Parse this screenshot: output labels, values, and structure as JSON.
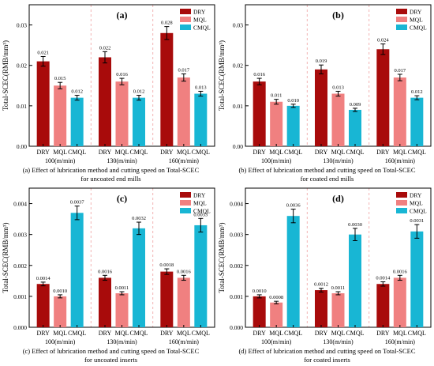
{
  "colors": {
    "DRY": "#a80b0b",
    "MQL": "#f08080",
    "CMQL": "#18b6d4",
    "grid": "#f2b3b3",
    "error": "#000000"
  },
  "chart_data": [
    {
      "type": "bar",
      "panel_label": "(a)",
      "ylabel": "Total-SCEC(RMB/mm³)",
      "ylim": [
        0,
        0.035
      ],
      "yticks": [
        "0.00",
        "0.01",
        "0.02",
        "0.03"
      ],
      "ytick_values": [
        0,
        0.01,
        0.02,
        0.03
      ],
      "categories": [
        "DRY",
        "MQL",
        "CMQL"
      ],
      "groups": [
        "100(m/min)",
        "130(m/min)",
        "160(m/min)"
      ],
      "series": [
        {
          "name": "DRY",
          "values": [
            0.021,
            0.022,
            0.028
          ],
          "labels": [
            "0.021",
            "0.022",
            "0.028"
          ],
          "errors": [
            0.0012,
            0.0014,
            0.0016
          ]
        },
        {
          "name": "MQL",
          "values": [
            0.015,
            0.016,
            0.017
          ],
          "labels": [
            "0.015",
            "0.016",
            "0.017"
          ],
          "errors": [
            0.0008,
            0.0008,
            0.0009
          ]
        },
        {
          "name": "CMQL",
          "values": [
            0.012,
            0.012,
            0.013
          ],
          "labels": [
            "0.012",
            "0.012",
            "0.013"
          ],
          "errors": [
            0.0006,
            0.0006,
            0.0006
          ]
        }
      ],
      "legend": [
        "DRY",
        "MQL",
        "CMQL"
      ],
      "legend_position": "top-right",
      "caption": [
        "(a) Effect of lubrication method and cutting speed on Total-SCEC",
        "for uncoated end mills"
      ]
    },
    {
      "type": "bar",
      "panel_label": "(b)",
      "ylabel": "Total-SCEC(RMB/mm³)",
      "ylim": [
        0,
        0.035
      ],
      "yticks": [
        "0.00",
        "0.01",
        "0.02",
        "0.03"
      ],
      "ytick_values": [
        0,
        0.01,
        0.02,
        0.03
      ],
      "categories": [
        "DRY",
        "MQL",
        "CMQL"
      ],
      "groups": [
        "100(m/min)",
        "130(m/min)",
        "160(m/min)"
      ],
      "series": [
        {
          "name": "DRY",
          "values": [
            0.016,
            0.019,
            0.024
          ],
          "labels": [
            "0.016",
            "0.019",
            "0.024"
          ],
          "errors": [
            0.0008,
            0.0011,
            0.0013
          ]
        },
        {
          "name": "MQL",
          "values": [
            0.011,
            0.013,
            0.017
          ],
          "labels": [
            "0.011",
            "0.013",
            "0.017"
          ],
          "errors": [
            0.0006,
            0.0006,
            0.0008
          ]
        },
        {
          "name": "CMQL",
          "values": [
            0.01,
            0.009,
            0.012
          ],
          "labels": [
            "0.010",
            "0.009",
            "0.012"
          ],
          "errors": [
            0.0004,
            0.0004,
            0.0005
          ]
        }
      ],
      "legend": [
        "DRY",
        "MQL",
        "CMQL"
      ],
      "legend_position": "top-right",
      "caption": [
        "(b) Effect of lubrication method and cutting speed on Total-SCEC",
        "for coated end mills"
      ]
    },
    {
      "type": "bar",
      "panel_label": "(c)",
      "ylabel": "Total-SCEC(RMB/mm³)",
      "ylim": [
        0,
        0.0045
      ],
      "yticks": [
        "0.000",
        "0.001",
        "0.002",
        "0.003",
        "0.004"
      ],
      "ytick_values": [
        0,
        0.001,
        0.002,
        0.003,
        0.004
      ],
      "categories": [
        "DRY",
        "MQL",
        "CMQL"
      ],
      "groups": [
        "100(m/min)",
        "130(m/min)",
        "160(m/min)"
      ],
      "series": [
        {
          "name": "DRY",
          "values": [
            0.0014,
            0.0016,
            0.0018
          ],
          "labels": [
            "0.0014",
            "0.0016",
            "0.0018"
          ],
          "errors": [
            6e-05,
            8e-05,
            9e-05
          ]
        },
        {
          "name": "MQL",
          "values": [
            0.001,
            0.0011,
            0.0016
          ],
          "labels": [
            "0.0010",
            "0.0011",
            "0.0016"
          ],
          "errors": [
            5e-05,
            5e-05,
            8e-05
          ]
        },
        {
          "name": "CMQL",
          "values": [
            0.0037,
            0.0032,
            0.0033
          ],
          "labels": [
            "0.0037",
            "0.0032",
            "0.0033"
          ],
          "errors": [
            0.00022,
            0.0002,
            0.00022
          ]
        }
      ],
      "legend": [
        "DRY",
        "MQL",
        "CMQL"
      ],
      "legend_position": "top-right",
      "caption": [
        "(c) Effect of lubrication method and cutting speed on Total-SCEC",
        "for uncoated inserts"
      ]
    },
    {
      "type": "bar",
      "panel_label": "(d)",
      "ylabel": "Total-SCEC(RMB/mm³)",
      "ylim": [
        0,
        0.0045
      ],
      "yticks": [
        "0.000",
        "0.001",
        "0.002",
        "0.003",
        "0.004"
      ],
      "ytick_values": [
        0,
        0.001,
        0.002,
        0.003,
        0.004
      ],
      "categories": [
        "DRY",
        "MQL",
        "CMQL"
      ],
      "groups": [
        "100(m/min)",
        "130(m/min)",
        "160(m/min)"
      ],
      "series": [
        {
          "name": "DRY",
          "values": [
            0.001,
            0.0012,
            0.0014
          ],
          "labels": [
            "0.0010",
            "0.0012",
            "0.0014"
          ],
          "errors": [
            5e-05,
            6e-05,
            7e-05
          ]
        },
        {
          "name": "MQL",
          "values": [
            0.0008,
            0.0011,
            0.0016
          ],
          "labels": [
            "0.0008",
            "0.0011",
            "0.0016"
          ],
          "errors": [
            4e-05,
            5e-05,
            8e-05
          ]
        },
        {
          "name": "CMQL",
          "values": [
            0.0036,
            0.003,
            0.0031
          ],
          "labels": [
            "0.0036",
            "0.0030",
            "0.0031"
          ],
          "errors": [
            0.00022,
            0.0002,
            0.00022
          ]
        }
      ],
      "legend": [
        "DRY",
        "MQL",
        "CMQL"
      ],
      "legend_position": "top-right",
      "caption": [
        "(d) Effect of lubrication method and cutting speed on Total-SCEC",
        "for coated inserts"
      ]
    }
  ]
}
